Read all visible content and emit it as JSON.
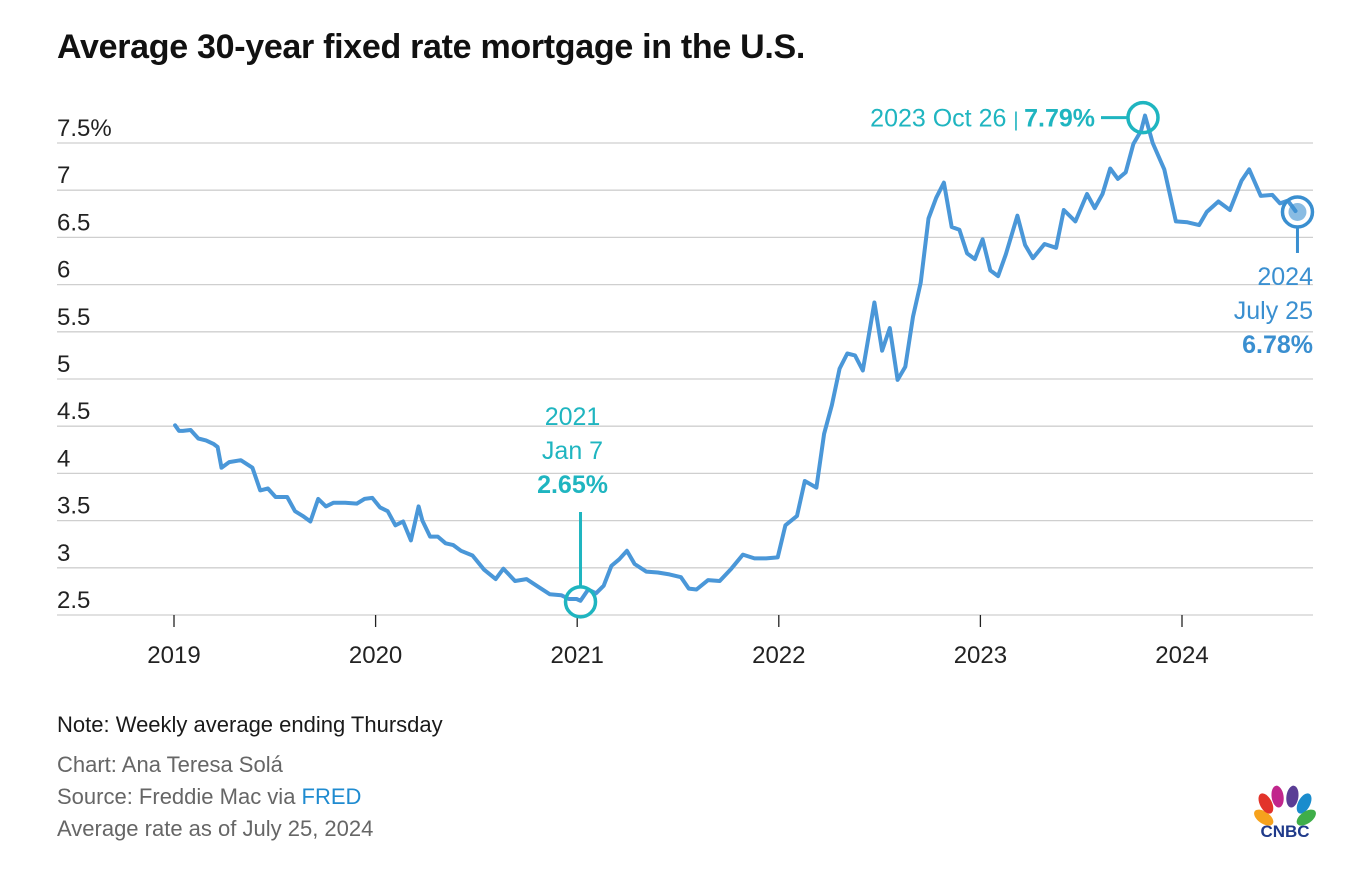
{
  "title": "Average 30-year fixed rate mortgage in the U.S.",
  "footer": {
    "note": "Note: Weekly average ending Thursday",
    "credit": "Chart: Ana Teresa Solá",
    "source_prefix": "Source: Freddie Mac via ",
    "source_link": "FRED",
    "as_of": "Average rate as of July 25, 2024"
  },
  "logo": {
    "text": "CNBC"
  },
  "colors": {
    "line": "#4a97d8",
    "annotation_teal": "#1fb5c0",
    "annotation_blue": "#3a8fd0",
    "grid": "#cfcfcf",
    "axis_text": "#222222",
    "link": "#1f8bd0"
  },
  "chart_data": {
    "type": "line",
    "title": "Average 30-year fixed rate mortgage in the U.S.",
    "xlabel": "",
    "ylabel": "",
    "ylim": [
      2.5,
      7.5
    ],
    "y_ticks": [
      {
        "value": 7.5,
        "label": "7.5%"
      },
      {
        "value": 7,
        "label": "7"
      },
      {
        "value": 6.5,
        "label": "6.5"
      },
      {
        "value": 6,
        "label": "6"
      },
      {
        "value": 5.5,
        "label": "5.5"
      },
      {
        "value": 5,
        "label": "5"
      },
      {
        "value": 4.5,
        "label": "4.5"
      },
      {
        "value": 4,
        "label": "4"
      },
      {
        "value": 3.5,
        "label": "3.5"
      },
      {
        "value": 3,
        "label": "3"
      },
      {
        "value": 2.5,
        "label": "2.5"
      }
    ],
    "x_ticks": [
      {
        "value": 2019,
        "label": "2019"
      },
      {
        "value": 2020,
        "label": "2020"
      },
      {
        "value": 2021,
        "label": "2021"
      },
      {
        "value": 2022,
        "label": "2022"
      },
      {
        "value": 2023,
        "label": "2023"
      },
      {
        "value": 2024,
        "label": "2024"
      }
    ],
    "grid": true,
    "series": [
      {
        "x": [
          "2019-01-03",
          "2019-01-10",
          "2019-01-17",
          "2019-01-31",
          "2019-02-14",
          "2019-02-28",
          "2019-03-14",
          "2019-03-21",
          "2019-03-28",
          "2019-04-11",
          "2019-05-02",
          "2019-05-23",
          "2019-06-06",
          "2019-06-20",
          "2019-07-04",
          "2019-07-25",
          "2019-08-08",
          "2019-08-22",
          "2019-09-05",
          "2019-09-19",
          "2019-10-03",
          "2019-10-17",
          "2019-11-07",
          "2019-11-28",
          "2019-12-12",
          "2019-12-26",
          "2020-01-09",
          "2020-01-23",
          "2020-02-06",
          "2020-02-20",
          "2020-03-05",
          "2020-03-19",
          "2020-03-26",
          "2020-04-09",
          "2020-04-23",
          "2020-05-07",
          "2020-05-21",
          "2020-06-04",
          "2020-06-25",
          "2020-07-16",
          "2020-08-06",
          "2020-08-20",
          "2020-09-10",
          "2020-10-01",
          "2020-10-22",
          "2020-11-12",
          "2020-12-03",
          "2020-12-17",
          "2020-12-31",
          "2021-01-07",
          "2021-01-21",
          "2021-02-04",
          "2021-02-18",
          "2021-03-04",
          "2021-03-18",
          "2021-04-01",
          "2021-04-15",
          "2021-05-06",
          "2021-05-27",
          "2021-06-17",
          "2021-07-08",
          "2021-07-22",
          "2021-08-05",
          "2021-08-26",
          "2021-09-16",
          "2021-10-07",
          "2021-10-28",
          "2021-11-18",
          "2021-12-09",
          "2021-12-30",
          "2022-01-13",
          "2022-02-03",
          "2022-02-17",
          "2022-03-10",
          "2022-03-24",
          "2022-04-07",
          "2022-04-21",
          "2022-05-05",
          "2022-05-19",
          "2022-06-02",
          "2022-06-23",
          "2022-07-07",
          "2022-07-21",
          "2022-08-04",
          "2022-08-18",
          "2022-09-01",
          "2022-09-15",
          "2022-09-29",
          "2022-10-13",
          "2022-10-27",
          "2022-11-10",
          "2022-11-24",
          "2022-12-08",
          "2022-12-22",
          "2023-01-05",
          "2023-01-19",
          "2023-02-02",
          "2023-02-16",
          "2023-03-09",
          "2023-03-23",
          "2023-04-06",
          "2023-04-27",
          "2023-05-18",
          "2023-06-01",
          "2023-06-22",
          "2023-07-13",
          "2023-07-27",
          "2023-08-10",
          "2023-08-24",
          "2023-09-07",
          "2023-09-21",
          "2023-10-05",
          "2023-10-19",
          "2023-10-26",
          "2023-11-09",
          "2023-11-30",
          "2023-12-21",
          "2024-01-11",
          "2024-02-01",
          "2024-02-15",
          "2024-03-07",
          "2024-03-28",
          "2024-04-18",
          "2024-05-02",
          "2024-05-23",
          "2024-06-13",
          "2024-06-27",
          "2024-07-11",
          "2024-07-25"
        ],
        "values": [
          4.51,
          4.45,
          4.45,
          4.46,
          4.37,
          4.35,
          4.31,
          4.28,
          4.06,
          4.12,
          4.14,
          4.06,
          3.82,
          3.84,
          3.75,
          3.75,
          3.6,
          3.55,
          3.49,
          3.73,
          3.65,
          3.69,
          3.69,
          3.68,
          3.73,
          3.74,
          3.64,
          3.6,
          3.45,
          3.49,
          3.29,
          3.65,
          3.5,
          3.33,
          3.33,
          3.26,
          3.24,
          3.18,
          3.13,
          2.98,
          2.88,
          2.99,
          2.86,
          2.88,
          2.8,
          2.72,
          2.71,
          2.67,
          2.67,
          2.65,
          2.77,
          2.73,
          2.81,
          3.02,
          3.09,
          3.18,
          3.04,
          2.96,
          2.95,
          2.93,
          2.9,
          2.78,
          2.77,
          2.87,
          2.86,
          2.99,
          3.14,
          3.1,
          3.1,
          3.11,
          3.45,
          3.55,
          3.92,
          3.85,
          4.42,
          4.72,
          5.11,
          5.27,
          5.25,
          5.09,
          5.81,
          5.3,
          5.54,
          4.99,
          5.13,
          5.66,
          6.02,
          6.7,
          6.92,
          7.08,
          6.61,
          6.58,
          6.33,
          6.27,
          6.48,
          6.15,
          6.09,
          6.32,
          6.73,
          6.42,
          6.28,
          6.43,
          6.39,
          6.79,
          6.67,
          6.96,
          6.81,
          6.96,
          7.23,
          7.12,
          7.19,
          7.49,
          7.63,
          7.79,
          7.5,
          7.22,
          6.67,
          6.66,
          6.63,
          6.77,
          6.88,
          6.79,
          7.1,
          7.22,
          6.94,
          6.95,
          6.86,
          6.89,
          6.78
        ],
        "color": "#4a97d8"
      }
    ],
    "annotations": [
      {
        "date_line1": "2021",
        "date_line2": "Jan 7",
        "value_label": "2.65%",
        "x": "2021-01-07",
        "y": 2.65,
        "color": "#1fb5c0",
        "placement": "above"
      },
      {
        "date_line1": "2023 Oct 26",
        "separator": "|",
        "value_label": "7.79%",
        "x": "2023-10-26",
        "y": 7.79,
        "color": "#1fb5c0",
        "placement": "left"
      },
      {
        "date_line1": "2024",
        "date_line2": "July 25",
        "value_label": "6.78%",
        "x": "2024-07-25",
        "y": 6.78,
        "color": "#3a8fd0",
        "placement": "below"
      }
    ]
  }
}
